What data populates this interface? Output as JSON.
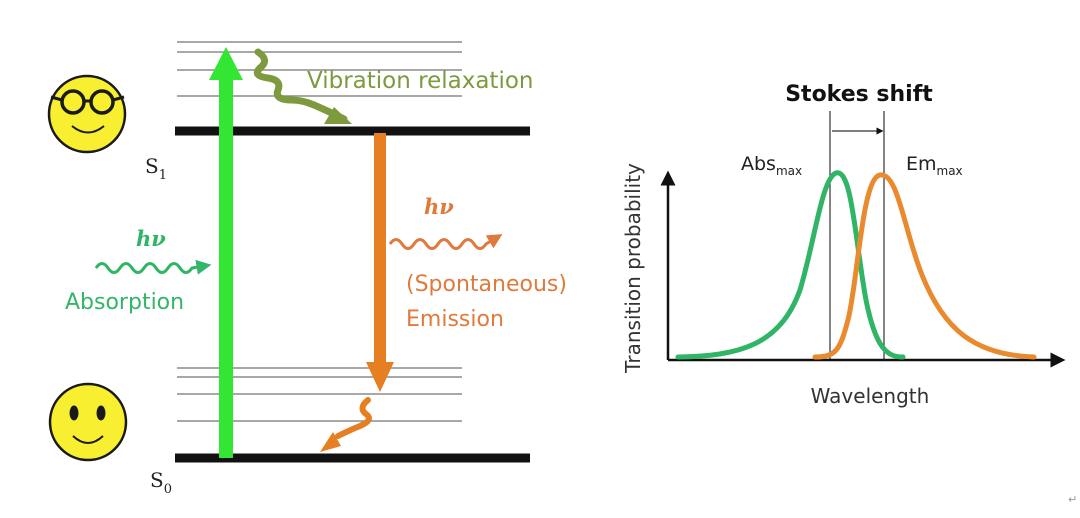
{
  "diagram": {
    "vibration_label": "Vibration relaxation",
    "absorption_hv": "hν",
    "absorption_label": "Absorption",
    "emission_hv": "hν",
    "emission_label_line1": "(Spontaneous)",
    "emission_label_line2": "Emission",
    "state_excited": {
      "symbol": "S",
      "subscript": "1"
    },
    "state_ground": {
      "symbol": "S",
      "subscript": "0"
    },
    "face_excited": "smiley-face-with-glasses-icon",
    "face_ground": "smiley-face-icon"
  },
  "chart": {
    "title": "Stokes shift",
    "xlabel": "Wavelength",
    "ylabel": "Transition probability",
    "abs_label": {
      "main": "Abs",
      "sub": "max"
    },
    "em_label": {
      "main": "Em",
      "sub": "max"
    },
    "corner_mark": "↵"
  },
  "colors": {
    "absorption": "#33cc33",
    "emission": "#e07a2a",
    "vibration": "#7e9a3f",
    "abs_curve": "#2fb565",
    "em_curve": "#ea8a2f",
    "face": "#f7ef2f"
  }
}
